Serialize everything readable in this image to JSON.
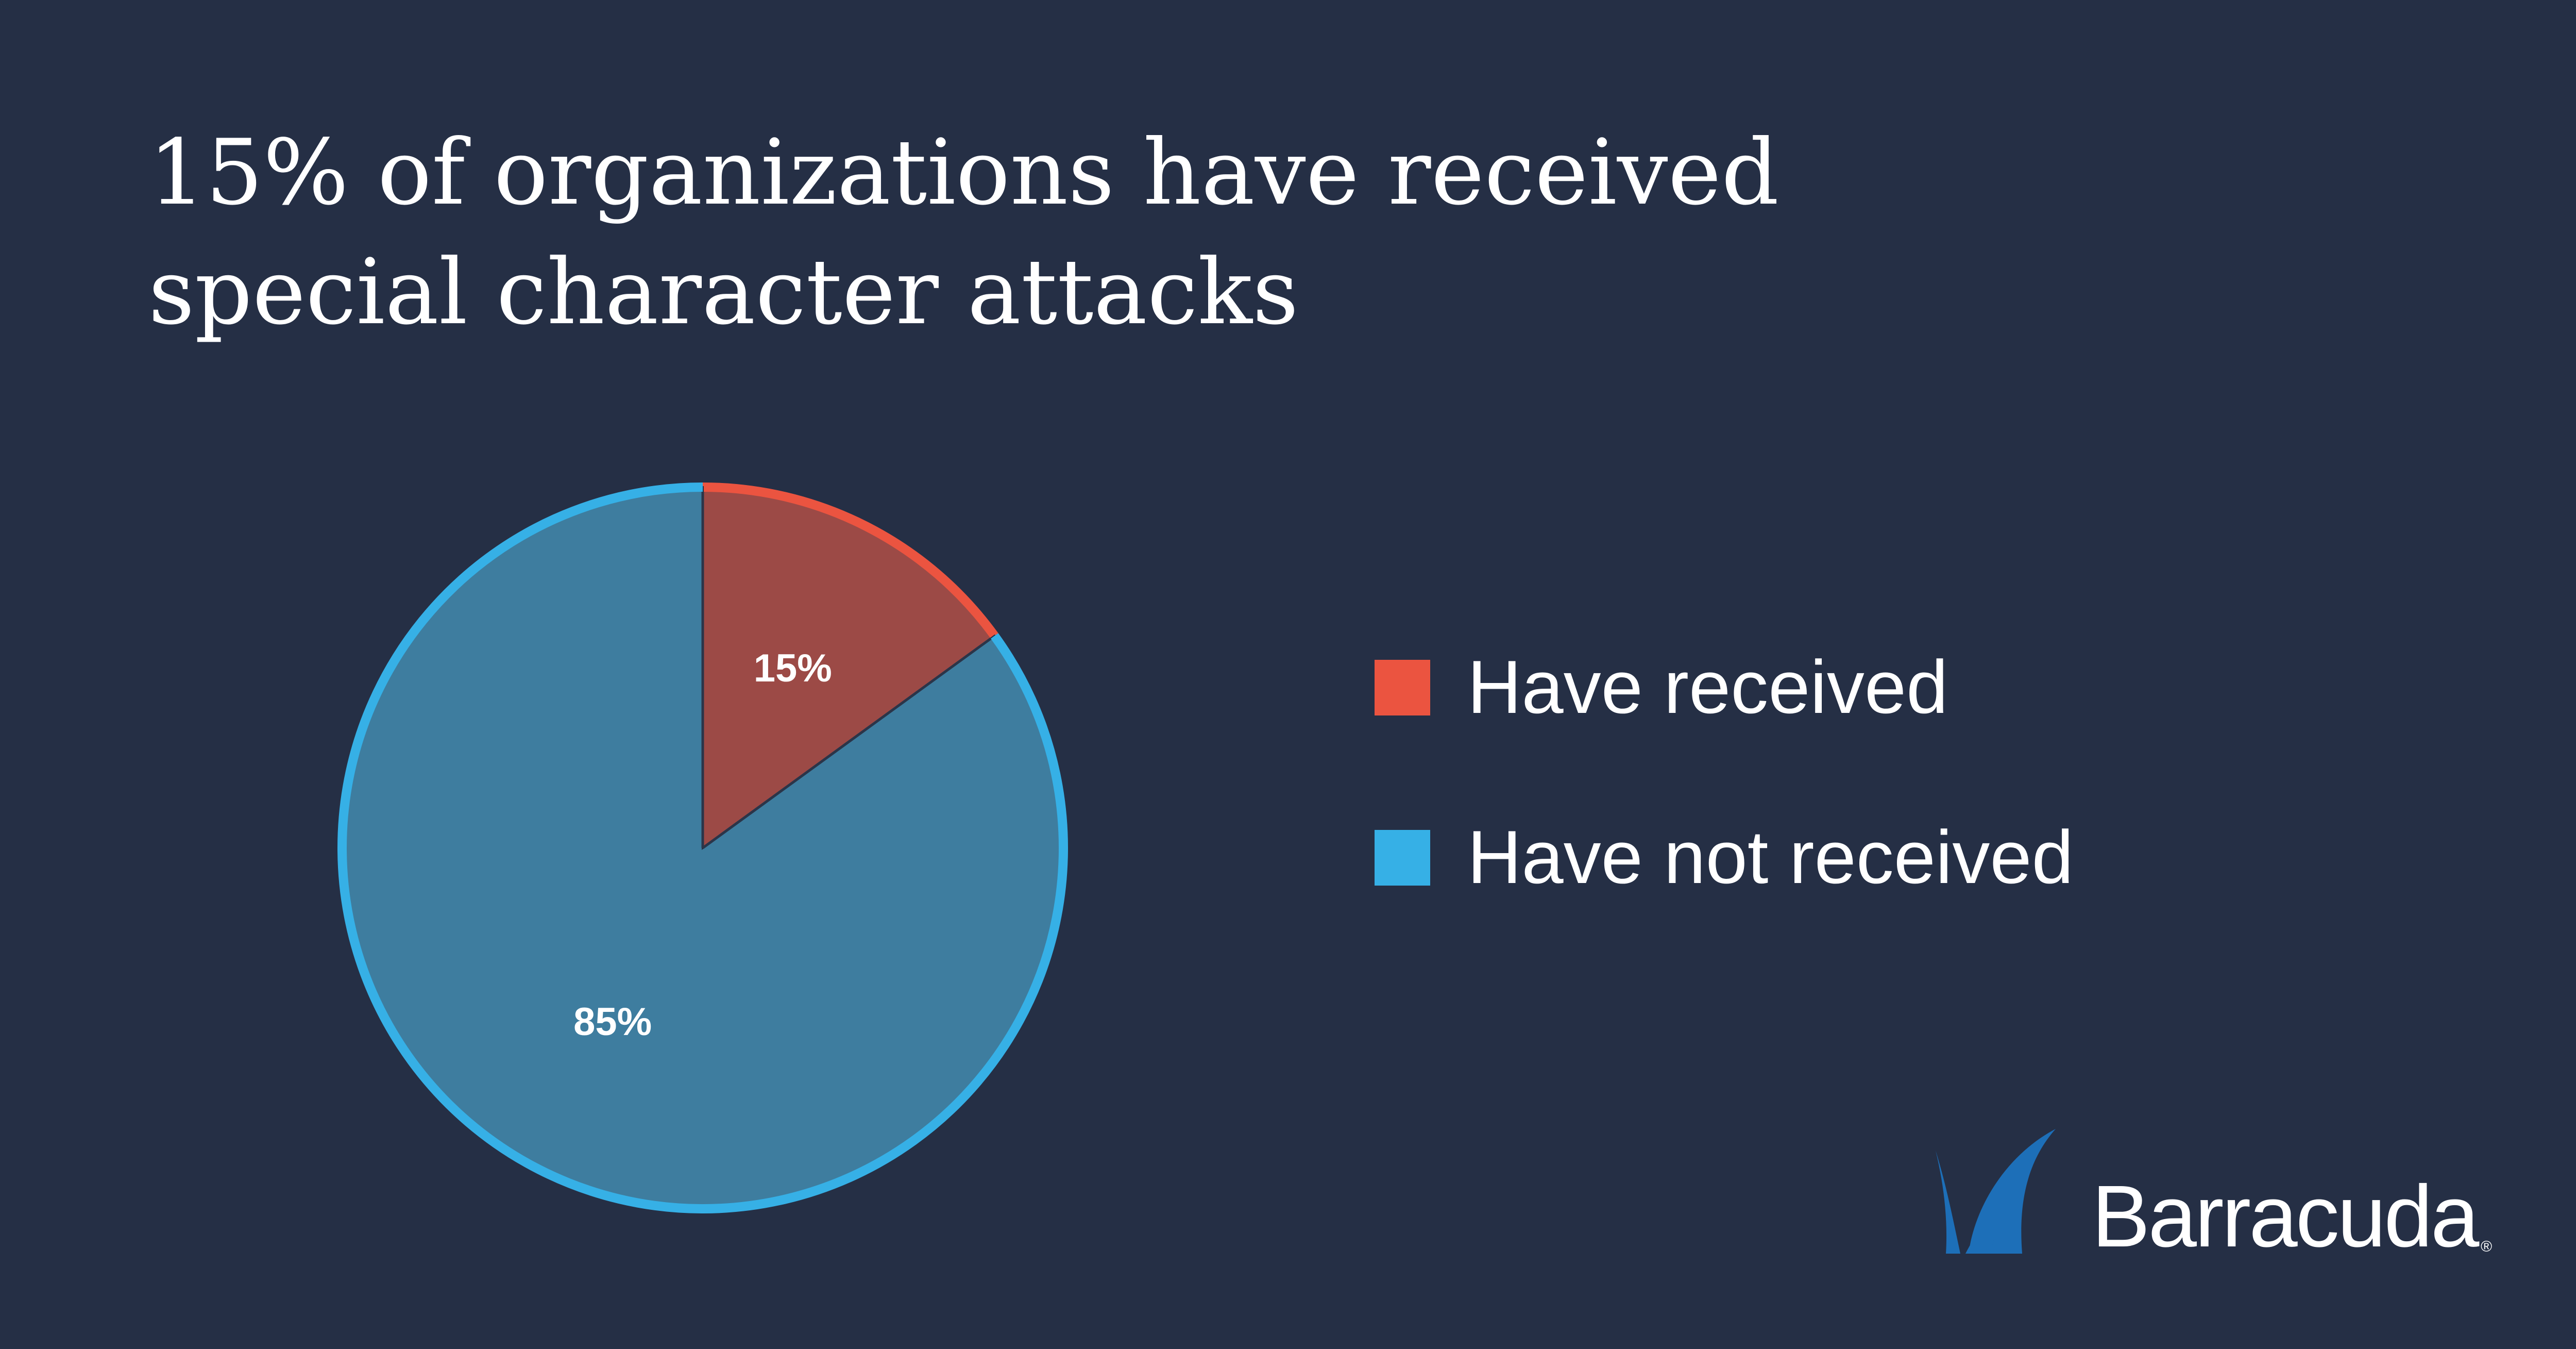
{
  "title_lines": [
    "15% of organizations have received",
    "special character attacks"
  ],
  "chart_data": {
    "type": "pie",
    "title": "15% of organizations have received special character attacks",
    "legend_position": "right",
    "slices": [
      {
        "label": "Have received",
        "value": 15,
        "data_label": "15%",
        "fill": "#9c4a46",
        "stroke": "#eb5440"
      },
      {
        "label": "Have not received",
        "value": 85,
        "data_label": "85%",
        "fill": "#3e7d9f",
        "stroke": "#36b0e6"
      }
    ]
  },
  "legend": [
    {
      "label": "Have received",
      "color": "#eb5440"
    },
    {
      "label": "Have not received",
      "color": "#36b0e6"
    }
  ],
  "logo": {
    "text": "Barracuda",
    "reg_mark": "®",
    "mark_color": "#1d6fb8",
    "icon": "barracuda-fin-logo"
  },
  "colors": {
    "background": "#252f45",
    "divider": "#2b3549"
  }
}
